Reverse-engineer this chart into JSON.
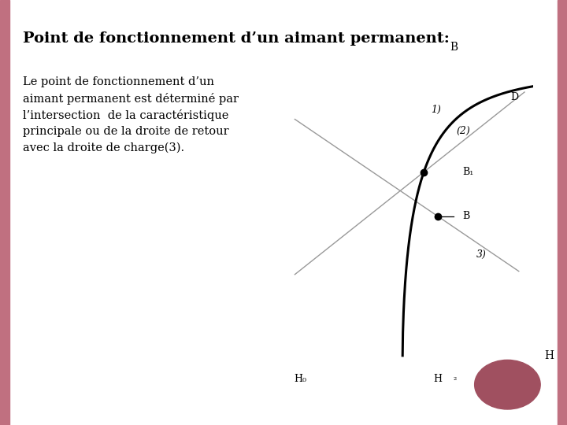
{
  "title": "Point de fonctionnement d’un aimant permanent:",
  "body_text": "Le point de fonctionnement d’un\naimant permanent est déterminé par\nl’intersection  de la caractéristique\nprincipale ou de la droite de retour\navec la droite de charge(3).",
  "bg_color": "#ffffff",
  "left_bar_color": "#c07080",
  "dot_color": "#a05060",
  "curve_color": "#000000",
  "line_color": "#999999",
  "label_B_axis": "B",
  "label_H_axis": "H",
  "label_B1": "B₁",
  "label_B_point": "B",
  "label_D": "D",
  "label_H0": "H₀",
  "label_H_point": "H",
  "label_H2": "₂",
  "label_1": "1)",
  "label_2": "(2)",
  "label_3": "3)",
  "title_fontsize": 14,
  "body_fontsize": 10.5
}
